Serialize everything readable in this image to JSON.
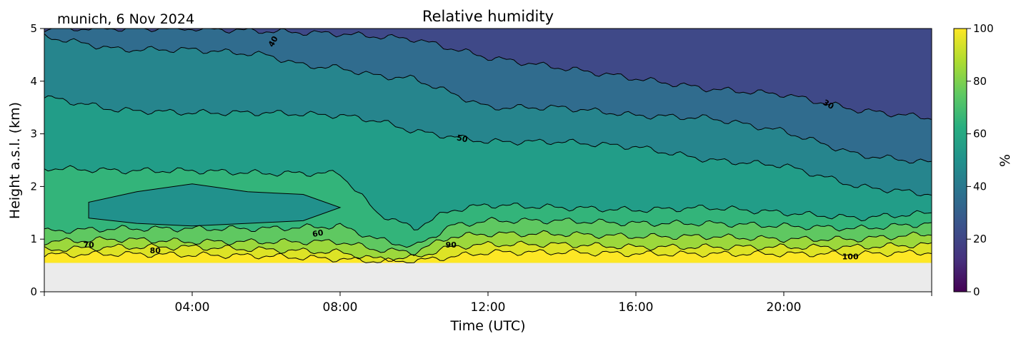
{
  "chart_data": {
    "type": "heatmap",
    "title": "Relative humidity",
    "location_label": "munich, 6 Nov 2024",
    "xlabel": "Time (UTC)",
    "ylabel": "Height a.s.l. (km)",
    "x_ticks": [
      "04:00",
      "08:00",
      "12:00",
      "16:00",
      "20:00"
    ],
    "x_tick_hours": [
      4,
      8,
      12,
      16,
      20
    ],
    "xlim_hours": [
      0,
      24
    ],
    "y_ticks": [
      "0",
      "1",
      "2",
      "3",
      "4",
      "5"
    ],
    "ylim": [
      0,
      5
    ],
    "data_bottom_km": 0.55,
    "colorbar": {
      "label": "%",
      "ticks": [
        "0",
        "20",
        "40",
        "60",
        "80",
        "100"
      ],
      "range": [
        0,
        100
      ],
      "colormap": "viridis"
    },
    "contours": [
      {
        "level": 30,
        "label": "30",
        "heights_km": [
          [
            0,
            5.0
          ],
          [
            4,
            5.0
          ],
          [
            6,
            4.95
          ],
          [
            8,
            4.9
          ],
          [
            10,
            4.8
          ],
          [
            12,
            4.45
          ],
          [
            14,
            4.25
          ],
          [
            16,
            4.05
          ],
          [
            18,
            3.85
          ],
          [
            20,
            3.75
          ],
          [
            22,
            3.45
          ],
          [
            24,
            3.3
          ]
        ]
      },
      {
        "level": 40,
        "label": "40",
        "heights_km": [
          [
            0,
            4.85
          ],
          [
            2,
            4.6
          ],
          [
            4,
            4.6
          ],
          [
            6,
            4.5
          ],
          [
            7,
            4.3
          ],
          [
            8,
            4.25
          ],
          [
            9,
            4.1
          ],
          [
            10,
            4.05
          ],
          [
            12,
            3.5
          ],
          [
            14,
            3.5
          ],
          [
            16,
            3.35
          ],
          [
            18,
            3.3
          ],
          [
            20,
            3.05
          ],
          [
            22,
            2.6
          ],
          [
            24,
            2.45
          ]
        ]
      },
      {
        "level": 50,
        "label": "50",
        "heights_km": [
          [
            0,
            3.7
          ],
          [
            2,
            3.45
          ],
          [
            4,
            3.4
          ],
          [
            6,
            3.4
          ],
          [
            8,
            3.35
          ],
          [
            9,
            3.25
          ],
          [
            10,
            3.05
          ],
          [
            12,
            2.85
          ],
          [
            14,
            2.85
          ],
          [
            16,
            2.75
          ],
          [
            18,
            2.5
          ],
          [
            20,
            2.4
          ],
          [
            22,
            2.0
          ],
          [
            24,
            1.85
          ]
        ]
      },
      {
        "level": 60,
        "label": "60",
        "heights_km": [
          [
            0,
            2.35
          ],
          [
            2,
            2.3
          ],
          [
            4,
            2.3
          ],
          [
            6,
            2.25
          ],
          [
            8,
            2.25
          ],
          [
            9,
            1.5
          ],
          [
            10,
            1.2
          ],
          [
            11,
            1.55
          ],
          [
            12,
            1.65
          ],
          [
            14,
            1.6
          ],
          [
            16,
            1.55
          ],
          [
            18,
            1.6
          ],
          [
            20,
            1.5
          ],
          [
            22,
            1.4
          ],
          [
            24,
            1.5
          ]
        ]
      },
      {
        "level": 70,
        "label": "70",
        "heights_km": [
          [
            0,
            1.15
          ],
          [
            2,
            1.2
          ],
          [
            4,
            1.2
          ],
          [
            6,
            1.2
          ],
          [
            8,
            1.25
          ],
          [
            9,
            1.0
          ],
          [
            10,
            0.85
          ],
          [
            11,
            1.25
          ],
          [
            12,
            1.35
          ],
          [
            14,
            1.35
          ],
          [
            16,
            1.3
          ],
          [
            18,
            1.3
          ],
          [
            20,
            1.25
          ],
          [
            22,
            1.2
          ],
          [
            24,
            1.3
          ]
        ]
      },
      {
        "level": 80,
        "label": "80",
        "heights_km": [
          [
            0,
            0.95
          ],
          [
            2,
            1.0
          ],
          [
            4,
            0.95
          ],
          [
            6,
            0.95
          ],
          [
            8,
            0.95
          ],
          [
            9,
            0.8
          ],
          [
            10,
            0.75
          ],
          [
            11,
            1.05
          ],
          [
            12,
            1.1
          ],
          [
            14,
            1.1
          ],
          [
            16,
            1.05
          ],
          [
            18,
            1.05
          ],
          [
            20,
            1.0
          ],
          [
            22,
            1.0
          ],
          [
            24,
            1.1
          ]
        ]
      },
      {
        "level": 90,
        "label": "90",
        "heights_km": [
          [
            0,
            0.8
          ],
          [
            2,
            0.85
          ],
          [
            4,
            0.85
          ],
          [
            6,
            0.8
          ],
          [
            8,
            0.75
          ],
          [
            9,
            0.62
          ],
          [
            10,
            0.65
          ],
          [
            11,
            0.85
          ],
          [
            12,
            0.9
          ],
          [
            14,
            0.9
          ],
          [
            16,
            0.85
          ],
          [
            18,
            0.85
          ],
          [
            20,
            0.85
          ],
          [
            22,
            0.85
          ],
          [
            24,
            0.9
          ]
        ]
      },
      {
        "level": 100,
        "label": "100",
        "heights_km": [
          [
            0,
            0.7
          ],
          [
            2,
            0.72
          ],
          [
            4,
            0.7
          ],
          [
            6,
            0.68
          ],
          [
            8,
            0.62
          ],
          [
            9,
            0.58
          ],
          [
            10,
            0.58
          ],
          [
            12,
            0.75
          ],
          [
            14,
            0.75
          ],
          [
            16,
            0.72
          ],
          [
            18,
            0.72
          ],
          [
            20,
            0.72
          ],
          [
            22,
            0.72
          ],
          [
            24,
            0.75
          ]
        ]
      }
    ],
    "inner_contour_60": {
      "label": "60",
      "heights_km": [
        [
          1.2,
          1.7
        ],
        [
          2.5,
          1.9
        ],
        [
          4,
          2.05
        ],
        [
          5.5,
          1.9
        ],
        [
          7,
          1.85
        ],
        [
          8,
          1.6
        ],
        [
          7,
          1.35
        ],
        [
          5.5,
          1.3
        ],
        [
          4,
          1.25
        ],
        [
          2.5,
          1.3
        ],
        [
          1.2,
          1.4
        ]
      ]
    },
    "contour_labels": [
      {
        "text": "40",
        "hour": 6.2,
        "km": 4.75,
        "angle": -60
      },
      {
        "text": "30",
        "hour": 21.2,
        "km": 3.55,
        "angle": 30
      },
      {
        "text": "50",
        "hour": 11.3,
        "km": 2.9,
        "angle": 12
      },
      {
        "text": "60",
        "hour": 7.4,
        "km": 1.1,
        "angle": -10
      },
      {
        "text": "70",
        "hour": 1.2,
        "km": 0.88,
        "angle": 0
      },
      {
        "text": "80",
        "hour": 3.0,
        "km": 0.77,
        "angle": 0
      },
      {
        "text": "90",
        "hour": 11.0,
        "km": 0.88,
        "angle": 0
      },
      {
        "text": "100",
        "hour": 21.8,
        "km": 0.66,
        "angle": 0
      }
    ]
  }
}
